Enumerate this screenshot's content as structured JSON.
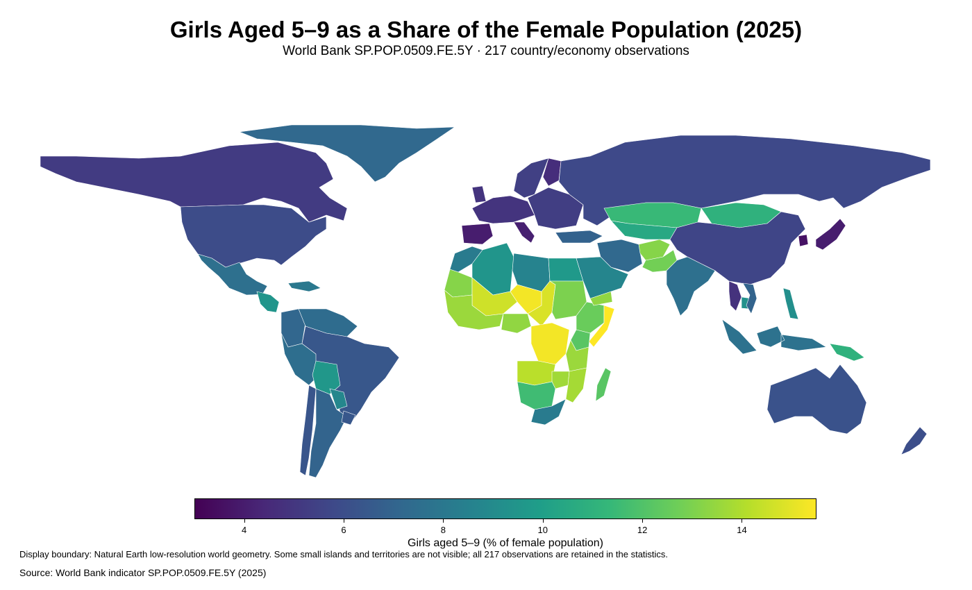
{
  "title": "Girls Aged 5–9 as a Share of the Female Population (2025)",
  "subtitle": "World Bank SP.POP.0509.FE.5Y · 217 country/economy observations",
  "colorbar": {
    "label": "Girls aged 5–9 (% of female population)",
    "min": 3,
    "max": 15.5,
    "ticks": [
      "4",
      "6",
      "8",
      "10",
      "12",
      "14"
    ],
    "tick_values": [
      4,
      6,
      8,
      10,
      12,
      14
    ],
    "colormap": "viridis",
    "stops": [
      "#440154",
      "#482878",
      "#3e4989",
      "#31688e",
      "#26828e",
      "#1f9e89",
      "#35b779",
      "#6ece58",
      "#b5de2b",
      "#fde725"
    ]
  },
  "note": "Display boundary: Natural Earth low-resolution world geometry. Some small islands and territories are not visible; all 217 observations are retained in the statistics.",
  "source": "Source: World Bank indicator SP.POP.0509.FE.5Y (2025)",
  "chart_data": {
    "type": "heatmap",
    "map": "choropleth",
    "title": "Girls Aged 5–9 as a Share of the Female Population (2025)",
    "value_label": "Girls aged 5–9 (% of female population)",
    "range": [
      3,
      15.5
    ],
    "observations": 217,
    "regions": [
      {
        "name": "Canada",
        "value": 5.2
      },
      {
        "name": "United States",
        "value": 5.9
      },
      {
        "name": "Greenland",
        "value": 7.2
      },
      {
        "name": "Mexico",
        "value": 7.6
      },
      {
        "name": "Central America",
        "value": 9.5
      },
      {
        "name": "Caribbean",
        "value": 8.0
      },
      {
        "name": "Venezuela",
        "value": 7.4
      },
      {
        "name": "Colombia",
        "value": 7.1
      },
      {
        "name": "Brazil",
        "value": 6.4
      },
      {
        "name": "Peru",
        "value": 7.5
      },
      {
        "name": "Bolivia",
        "value": 9.6
      },
      {
        "name": "Paraguay",
        "value": 8.8
      },
      {
        "name": "Argentina",
        "value": 7.0
      },
      {
        "name": "Chile",
        "value": 6.3
      },
      {
        "name": "Uruguay",
        "value": 6.4
      },
      {
        "name": "Western Europe",
        "value": 4.9
      },
      {
        "name": "Spain and Portugal",
        "value": 4.0
      },
      {
        "name": "Italy",
        "value": 4.1
      },
      {
        "name": "Eastern Europe",
        "value": 5.3
      },
      {
        "name": "Scandinavia",
        "value": 5.4
      },
      {
        "name": "Finland",
        "value": 4.6
      },
      {
        "name": "Russia",
        "value": 5.8
      },
      {
        "name": "Turkey",
        "value": 6.9
      },
      {
        "name": "Kazakhstan",
        "value": 11.4
      },
      {
        "name": "Central Asia",
        "value": 10.5
      },
      {
        "name": "Mongolia",
        "value": 11.0
      },
      {
        "name": "China",
        "value": 5.6
      },
      {
        "name": "South Korea",
        "value": 3.6
      },
      {
        "name": "Japan",
        "value": 4.0
      },
      {
        "name": "Iran",
        "value": 7.2
      },
      {
        "name": "Afghanistan",
        "value": 13.2
      },
      {
        "name": "Pakistan",
        "value": 12.8
      },
      {
        "name": "India",
        "value": 7.6
      },
      {
        "name": "Thailand",
        "value": 4.8
      },
      {
        "name": "Vietnam",
        "value": 7.0
      },
      {
        "name": "Cambodia",
        "value": 9.3
      },
      {
        "name": "Indonesia",
        "value": 7.7
      },
      {
        "name": "Philippines",
        "value": 9.2
      },
      {
        "name": "Papua New Guinea",
        "value": 11.0
      },
      {
        "name": "Australia",
        "value": 6.2
      },
      {
        "name": "New Zealand",
        "value": 6.0
      },
      {
        "name": "Saudi Arabia",
        "value": 8.7
      },
      {
        "name": "Yemen",
        "value": 13.4
      },
      {
        "name": "Egypt",
        "value": 9.7
      },
      {
        "name": "Libya",
        "value": 8.6
      },
      {
        "name": "Algeria",
        "value": 9.5
      },
      {
        "name": "Morocco",
        "value": 8.2
      },
      {
        "name": "Mali",
        "value": 14.6
      },
      {
        "name": "Niger",
        "value": 15.3
      },
      {
        "name": "Mauritania",
        "value": 13.2
      },
      {
        "name": "West Africa",
        "value": 13.6
      },
      {
        "name": "Nigeria",
        "value": 13.4
      },
      {
        "name": "Chad",
        "value": 14.8
      },
      {
        "name": "Sudan",
        "value": 13.0
      },
      {
        "name": "Ethiopia",
        "value": 12.6
      },
      {
        "name": "Somalia",
        "value": 15.5
      },
      {
        "name": "Kenya",
        "value": 12.2
      },
      {
        "name": "DR Congo",
        "value": 15.3
      },
      {
        "name": "Angola",
        "value": 14.2
      },
      {
        "name": "Tanzania",
        "value": 13.6
      },
      {
        "name": "Mozambique",
        "value": 13.8
      },
      {
        "name": "Zambia",
        "value": 13.7
      },
      {
        "name": "Namibia and Botswana",
        "value": 11.6
      },
      {
        "name": "South Africa",
        "value": 8.2
      },
      {
        "name": "Madagascar",
        "value": 12.2
      }
    ]
  }
}
